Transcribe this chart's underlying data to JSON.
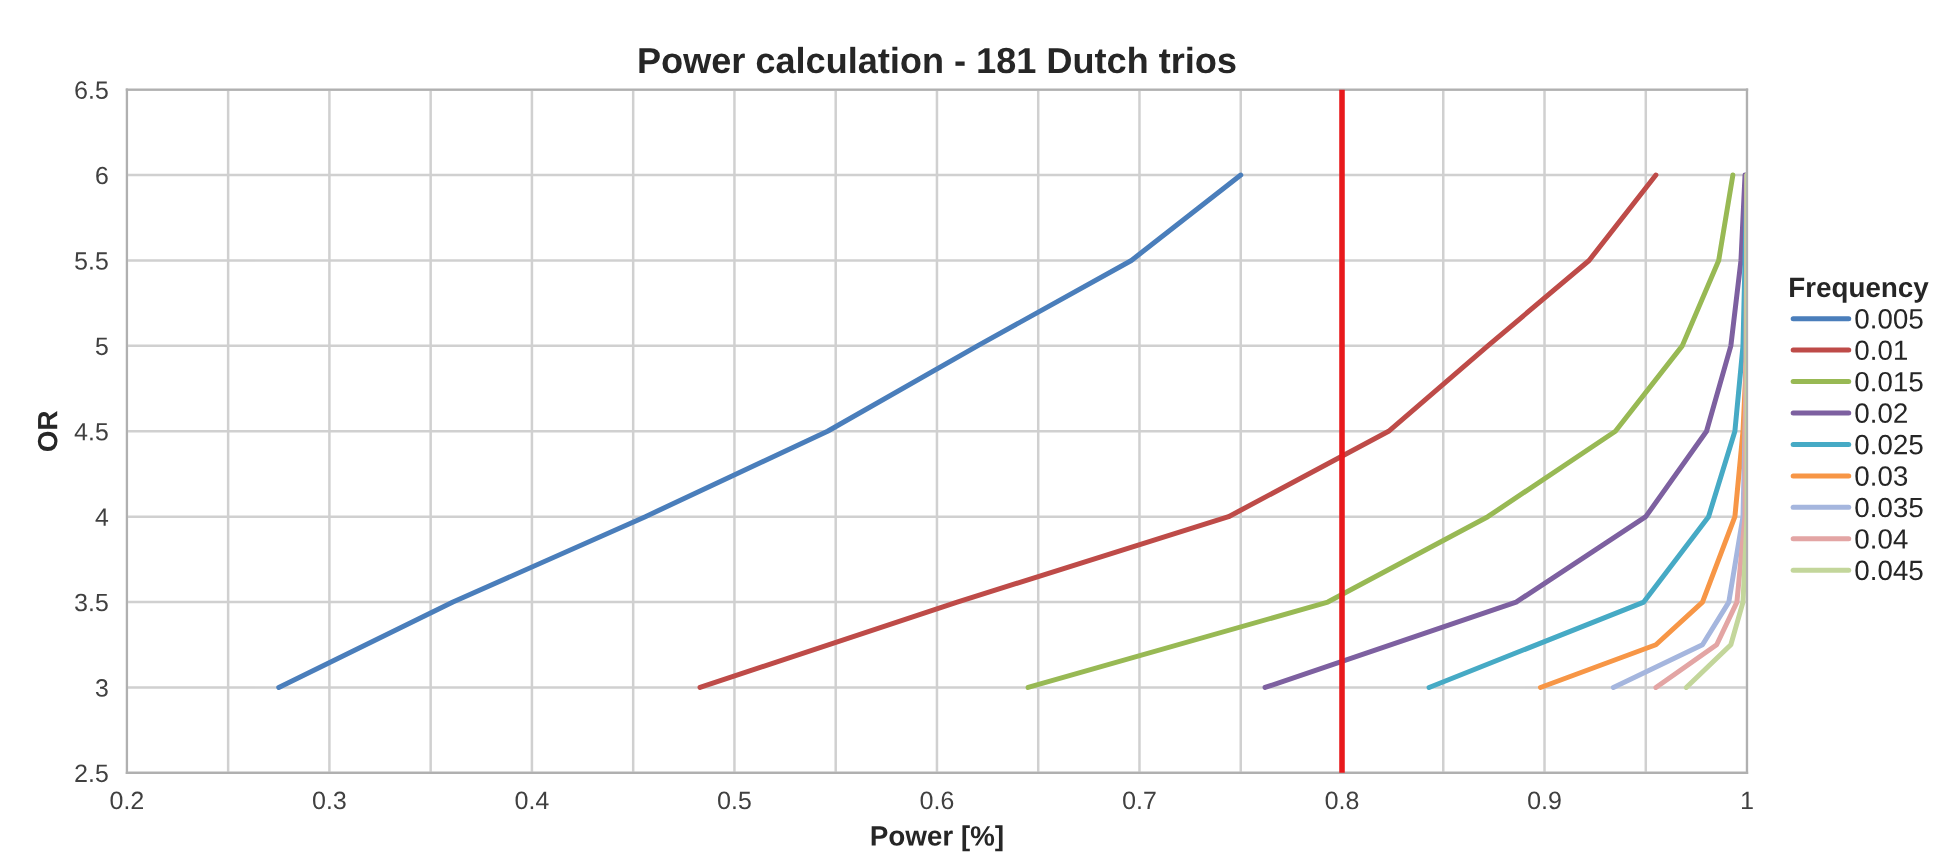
{
  "chart_data": {
    "type": "line",
    "title": "Power calculation - 181 Dutch trios",
    "xlabel": "Power [%]",
    "ylabel": "OR",
    "legend_title": "Frequency",
    "legend": "right",
    "grid": true,
    "marker": "none",
    "line_style": "solid",
    "xlim": [
      0.2,
      1
    ],
    "ylim": [
      2.5,
      6.5
    ],
    "xticks": [
      0.2,
      {
        "value": 0.25,
        "label": null
      },
      0.3,
      {
        "value": 0.35,
        "label": null
      },
      0.4,
      {
        "value": 0.45,
        "label": null
      },
      0.5,
      {
        "value": 0.55,
        "label": null
      },
      0.6,
      {
        "value": 0.65,
        "label": null
      },
      0.7,
      {
        "value": 0.75,
        "label": null
      },
      0.8,
      {
        "value": 0.85,
        "label": null
      },
      0.9,
      {
        "value": 0.95,
        "label": null
      },
      1
    ],
    "yticks": [
      2.5,
      3,
      3.5,
      4,
      4.5,
      5,
      5.5,
      6,
      6.5
    ],
    "series": [
      {
        "name": "0.005",
        "color": "#4a7ebb",
        "x": [
          0.275,
          0.361,
          0.456,
          0.546,
          0.62,
          0.696,
          0.75
        ],
        "values": [
          3,
          3.5,
          4,
          4.5,
          5,
          5.5,
          6
        ]
      },
      {
        "name": "0.01",
        "color": "#be4b48",
        "x": [
          0.483,
          0.61,
          0.744,
          0.823,
          0.872,
          0.922,
          0.955
        ],
        "values": [
          3,
          3.5,
          4,
          4.5,
          5,
          5.5,
          6
        ]
      },
      {
        "name": "0.015",
        "color": "#98b954",
        "x": [
          0.645,
          0.793,
          0.872,
          0.935,
          0.968,
          0.986,
          0.993
        ],
        "values": [
          3,
          3.5,
          4,
          4.5,
          5,
          5.5,
          6
        ]
      },
      {
        "name": "0.02",
        "color": "#7d60a0",
        "x": [
          0.762,
          0.886,
          0.95,
          0.98,
          0.992,
          0.997,
          0.999
        ],
        "values": [
          3,
          3.5,
          4,
          4.5,
          5,
          5.5,
          6
        ]
      },
      {
        "name": "0.025",
        "color": "#46aac5",
        "x": [
          0.843,
          0.949,
          0.981,
          0.994,
          0.998,
          0.999,
          1
        ],
        "values": [
          3,
          3.5,
          4,
          4.5,
          5,
          5.5,
          6
        ]
      },
      {
        "name": "0.03",
        "color": "#f79646",
        "x": [
          0.898,
          0.955,
          0.978,
          0.994,
          0.998,
          1,
          1
        ],
        "values": [
          3,
          3.25,
          3.5,
          4,
          4.5,
          5,
          6
        ]
      },
      {
        "name": "0.035",
        "color": "#a5b6de",
        "x": [
          0.934,
          0.978,
          0.991,
          0.998,
          1,
          1
        ],
        "values": [
          3,
          3.25,
          3.5,
          4,
          5,
          6
        ]
      },
      {
        "name": "0.04",
        "color": "#e3a5a4",
        "x": [
          0.955,
          0.985,
          0.995,
          0.999,
          1
        ],
        "values": [
          3,
          3.25,
          3.5,
          4,
          6
        ]
      },
      {
        "name": "0.045",
        "color": "#c3d69b",
        "x": [
          0.97,
          0.992,
          0.998,
          1,
          1
        ],
        "values": [
          3,
          3.25,
          3.5,
          4,
          6
        ]
      }
    ],
    "ref_lines": [
      {
        "axis": "x",
        "value": 0.8,
        "color": "#e8191c",
        "line_style": "solid"
      }
    ]
  }
}
